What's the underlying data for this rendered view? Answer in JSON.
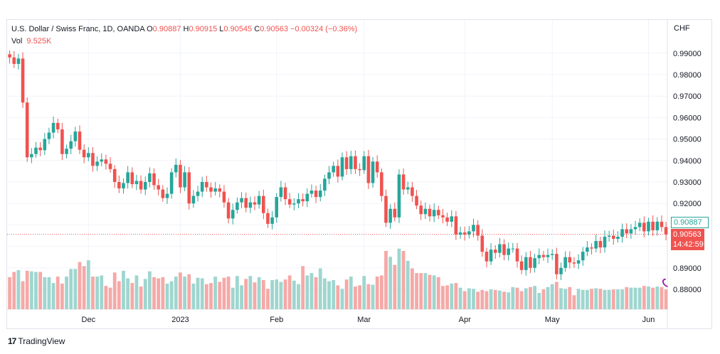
{
  "legend": {
    "symbol": "U.S. Dollar / Swiss Franc, 1D, OANDA",
    "o_label": "O",
    "o_value": "0.90887",
    "h_label": "H",
    "h_value": "0.90915",
    "l_label": "L",
    "l_value": "0.90545",
    "c_label": "C",
    "c_value": "0.90563",
    "change": "−0.00324 (−0.36%)",
    "vol_label": "Vol",
    "vol_value": "9.525K"
  },
  "axis": {
    "currency": "CHF",
    "open_tag": "0.90887",
    "last_price": "0.90563",
    "countdown": "14:42:59"
  },
  "brand": {
    "logo": "17",
    "name": "TradingView"
  },
  "colors": {
    "up": "#26a69a",
    "down": "#ef5350",
    "up_vol": "#9fd6cf",
    "down_vol": "#f5a9a7",
    "grid": "#f0f3fa"
  },
  "chart_data": {
    "type": "candlestick",
    "symbol": "USDCHF",
    "ylim": [
      0.8735,
      0.995
    ],
    "y_ticks": [
      "0.88000",
      "0.89000",
      "0.90000",
      "0.91000",
      "0.92000",
      "0.93000",
      "0.94000",
      "0.95000",
      "0.96000",
      "0.97000",
      "0.98000",
      "0.99000"
    ],
    "y_tick_values": [
      0.88,
      0.89,
      0.9,
      0.91,
      0.92,
      0.93,
      0.94,
      0.95,
      0.96,
      0.97,
      0.98,
      0.99
    ],
    "x_labels": [
      {
        "label": "Dec",
        "index": 17
      },
      {
        "label": "2023",
        "index": 38
      },
      {
        "label": "Feb",
        "index": 60
      },
      {
        "label": "Mar",
        "index": 80
      },
      {
        "label": "Apr",
        "index": 103
      },
      {
        "label": "May",
        "index": 123
      },
      {
        "label": "Jun",
        "index": 145
      }
    ],
    "start_index": -1,
    "closes": [
      0.988,
      0.985,
      0.9875,
      0.967,
      0.9415,
      0.943,
      0.946,
      0.9448,
      0.95,
      0.953,
      0.9575,
      0.9545,
      0.943,
      0.9455,
      0.949,
      0.9535,
      0.945,
      0.9415,
      0.9435,
      0.9375,
      0.9395,
      0.9405,
      0.9385,
      0.936,
      0.93,
      0.927,
      0.9295,
      0.9345,
      0.929,
      0.9305,
      0.9265,
      0.93,
      0.934,
      0.9285,
      0.9265,
      0.9225,
      0.9245,
      0.9345,
      0.938,
      0.9275,
      0.9345,
      0.92,
      0.9235,
      0.9255,
      0.93,
      0.9275,
      0.9255,
      0.927,
      0.9255,
      0.9205,
      0.913,
      0.917,
      0.9205,
      0.9225,
      0.918,
      0.9205,
      0.9195,
      0.9235,
      0.9155,
      0.9105,
      0.9135,
      0.923,
      0.9275,
      0.922,
      0.9195,
      0.92,
      0.922,
      0.921,
      0.9245,
      0.926,
      0.923,
      0.926,
      0.9315,
      0.9345,
      0.9375,
      0.9325,
      0.9415,
      0.936,
      0.942,
      0.936,
      0.9355,
      0.942,
      0.9295,
      0.9395,
      0.9345,
      0.9235,
      0.911,
      0.9175,
      0.9135,
      0.9335,
      0.9265,
      0.9275,
      0.9235,
      0.919,
      0.915,
      0.9175,
      0.914,
      0.917,
      0.9145,
      0.9135,
      0.9115,
      0.914,
      0.9055,
      0.9065,
      0.9055,
      0.907,
      0.91,
      0.905,
      0.8975,
      0.893,
      0.8985,
      0.897,
      0.901,
      0.896,
      0.899,
      0.899,
      0.893,
      0.889,
      0.895,
      0.89,
      0.8945,
      0.896,
      0.895,
      0.896,
      0.8965,
      0.887,
      0.89,
      0.895,
      0.8925,
      0.892,
      0.8935,
      0.8975,
      0.8995,
      0.899,
      0.9025,
      0.8995,
      0.9045,
      0.905,
      0.9035,
      0.9045,
      0.908,
      0.906,
      0.908,
      0.909,
      0.911,
      0.907,
      0.9115,
      0.9075,
      0.9115,
      0.909,
      0.9056
    ],
    "volume_relative": [
      0.55,
      0.64,
      0.67,
      0.48,
      0.66,
      0.65,
      0.64,
      0.64,
      0.55,
      0.55,
      0.45,
      0.56,
      0.44,
      0.56,
      0.69,
      0.69,
      0.81,
      0.74,
      0.84,
      0.56,
      0.56,
      0.58,
      0.4,
      0.37,
      0.63,
      0.48,
      0.66,
      0.53,
      0.45,
      0.58,
      0.39,
      0.52,
      0.65,
      0.55,
      0.53,
      0.55,
      0.44,
      0.48,
      0.56,
      0.63,
      0.56,
      0.6,
      0.44,
      0.54,
      0.53,
      0.43,
      0.45,
      0.56,
      0.47,
      0.54,
      0.56,
      0.37,
      0.57,
      0.41,
      0.52,
      0.57,
      0.46,
      0.55,
      0.5,
      0.35,
      0.5,
      0.51,
      0.47,
      0.51,
      0.58,
      0.49,
      0.43,
      0.74,
      0.58,
      0.62,
      0.55,
      0.7,
      0.53,
      0.48,
      0.5,
      0.41,
      0.35,
      0.51,
      0.56,
      0.39,
      0.41,
      0.57,
      0.43,
      0.42,
      0.56,
      0.58,
      1.0,
      0.9,
      0.76,
      1.04,
      1.0,
      0.83,
      0.7,
      0.62,
      0.62,
      0.62,
      0.59,
      0.58,
      0.55,
      0.4,
      0.41,
      0.44,
      0.45,
      0.37,
      0.31,
      0.36,
      0.35,
      0.3,
      0.33,
      0.31,
      0.34,
      0.33,
      0.32,
      0.3,
      0.29,
      0.38,
      0.37,
      0.31,
      0.36,
      0.38,
      0.4,
      0.28,
      0.34,
      0.38,
      0.43,
      0.47,
      0.36,
      0.35,
      0.38,
      0.24,
      0.35,
      0.33,
      0.33,
      0.35,
      0.36,
      0.35,
      0.33,
      0.33,
      0.34,
      0.34,
      0.34,
      0.38,
      0.37,
      0.37,
      0.37,
      0.4,
      0.39,
      0.37,
      0.39,
      0.38,
      0.34,
      0.31,
      0.32,
      0.3,
      0.29,
      0.27
    ],
    "current_price": 0.90563
  }
}
